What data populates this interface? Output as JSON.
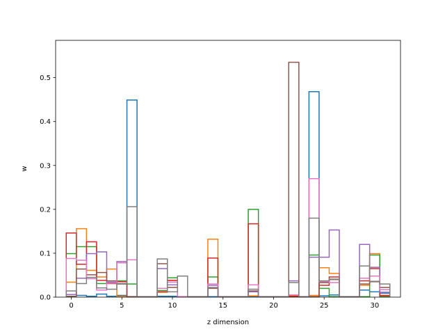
{
  "chart_data": {
    "type": "step-histogram",
    "xlabel": "z dimension",
    "ylabel": "w",
    "xlim": [
      -1.55,
      32.55
    ],
    "ylim": [
      0,
      0.585
    ],
    "xticks": [
      0,
      5,
      10,
      15,
      20,
      25,
      30
    ],
    "yticks": [
      0.0,
      0.1,
      0.2,
      0.3,
      0.4,
      0.5
    ],
    "grid": false,
    "legend": "none",
    "bins": 32,
    "bin_start": -0.5,
    "series": [
      {
        "color": "#1f77b4",
        "values": [
          0.006,
          0.004,
          0.002,
          0.007,
          0.002,
          0.004,
          0.449,
          0.001,
          0.001,
          0.002,
          0.002,
          0.001,
          0.001,
          0.001,
          0.001,
          0.001,
          0.001,
          0.001,
          0.001,
          0.001,
          0.001,
          0.001,
          0.001,
          0.001,
          0.468,
          0.003,
          0.005,
          0.001,
          0.001,
          0.016,
          0.012,
          0.009
        ]
      },
      {
        "color": "#ff7f0e",
        "values": [
          0.034,
          0.156,
          0.061,
          0.046,
          0.064,
          0.002,
          0.001,
          0.001,
          0.001,
          0.011,
          0.038,
          0.001,
          0.001,
          0.001,
          0.132,
          0.001,
          0.001,
          0.001,
          0.003,
          0.001,
          0.001,
          0.001,
          0.004,
          0.001,
          0.004,
          0.067,
          0.054,
          0.001,
          0.001,
          0.027,
          0.099,
          0.003
        ]
      },
      {
        "color": "#2ca02c",
        "values": [
          0.099,
          0.115,
          0.115,
          0.031,
          0.032,
          0.037,
          0.03,
          0.001,
          0.001,
          0.015,
          0.044,
          0.001,
          0.001,
          0.001,
          0.046,
          0.001,
          0.001,
          0.001,
          0.2,
          0.001,
          0.001,
          0.001,
          0.001,
          0.001,
          0.096,
          0.02,
          0.001,
          0.001,
          0.001,
          0.001,
          0.096,
          0.001
        ]
      },
      {
        "color": "#d62728",
        "values": [
          0.146,
          0.075,
          0.126,
          0.038,
          0.031,
          0.035,
          0.001,
          0.001,
          0.001,
          0.012,
          0.038,
          0.001,
          0.001,
          0.001,
          0.089,
          0.001,
          0.001,
          0.001,
          0.167,
          0.001,
          0.001,
          0.001,
          0.002,
          0.001,
          0.001,
          0.027,
          0.046,
          0.001,
          0.001,
          0.037,
          0.065,
          0.004
        ]
      },
      {
        "color": "#9467bd",
        "values": [
          0.006,
          0.043,
          0.099,
          0.103,
          0.034,
          0.081,
          0.001,
          0.001,
          0.001,
          0.065,
          0.028,
          0.001,
          0.001,
          0.001,
          0.027,
          0.001,
          0.001,
          0.001,
          0.012,
          0.001,
          0.001,
          0.001,
          0.037,
          0.001,
          0.091,
          0.091,
          0.153,
          0.001,
          0.001,
          0.12,
          0.068,
          0.011
        ]
      },
      {
        "color": "#8c564b",
        "values": [
          0.002,
          0.064,
          0.051,
          0.056,
          0.037,
          0.03,
          0.001,
          0.001,
          0.001,
          0.076,
          0.022,
          0.001,
          0.001,
          0.001,
          0.02,
          0.001,
          0.001,
          0.001,
          0.014,
          0.001,
          0.001,
          0.001,
          0.535,
          0.001,
          0.001,
          0.033,
          0.04,
          0.001,
          0.001,
          0.03,
          0.035,
          0.022
        ]
      },
      {
        "color": "#e377c2",
        "values": [
          0.088,
          0.084,
          0.042,
          0.016,
          0.032,
          0.078,
          0.085,
          0.001,
          0.001,
          0.02,
          0.034,
          0.001,
          0.001,
          0.001,
          0.03,
          0.001,
          0.001,
          0.001,
          0.028,
          0.001,
          0.001,
          0.001,
          0.005,
          0.001,
          0.27,
          0.035,
          0.033,
          0.001,
          0.001,
          0.043,
          0.048,
          0.017
        ]
      },
      {
        "color": "#7f7f7f",
        "values": [
          0.014,
          0.031,
          0.045,
          0.021,
          0.018,
          0.031,
          0.206,
          0.001,
          0.001,
          0.087,
          0.012,
          0.048,
          0.001,
          0.001,
          0.022,
          0.001,
          0.001,
          0.001,
          0.018,
          0.001,
          0.001,
          0.001,
          0.033,
          0.001,
          0.18,
          0.037,
          0.041,
          0.001,
          0.001,
          0.071,
          0.036,
          0.03
        ]
      }
    ]
  }
}
